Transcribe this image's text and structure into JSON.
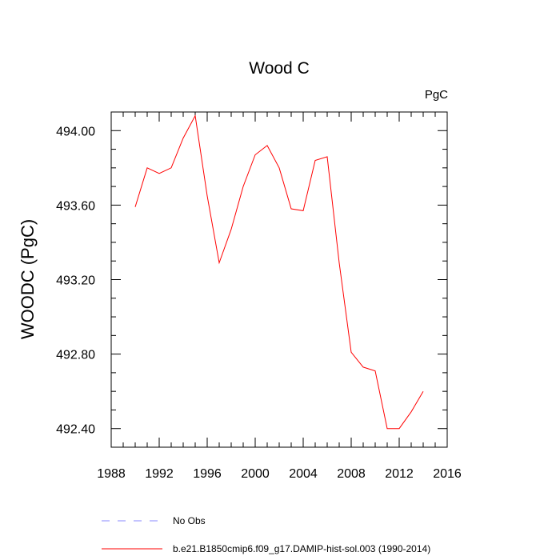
{
  "chart_data": {
    "type": "line",
    "title": "Wood C",
    "units_label": "PgC",
    "ylabel": "WOODC  (PgC)",
    "xlabel": "",
    "xlim": [
      1988,
      2016
    ],
    "ylim": [
      492.3,
      494.1
    ],
    "x_ticks": [
      1988,
      1992,
      1996,
      2000,
      2004,
      2008,
      2012,
      2016
    ],
    "x_tick_labels": [
      "1988",
      "1992",
      "1996",
      "2000",
      "2004",
      "2008",
      "2012",
      "2016"
    ],
    "y_ticks": [
      492.4,
      492.8,
      493.2,
      493.6,
      494.0
    ],
    "y_tick_labels": [
      "492.40",
      "492.80",
      "493.20",
      "493.60",
      "494.00"
    ],
    "grid": false,
    "legend_position": "bottom",
    "series": [
      {
        "name": "b.e21.B1850cmip6.f09_g17.DAMIP-hist-sol.003 (1990-2014)",
        "color": "#ff0000",
        "dash": "solid",
        "x": [
          1990,
          1991,
          1992,
          1993,
          1994,
          1995,
          1996,
          1997,
          1998,
          1999,
          2000,
          2001,
          2002,
          2003,
          2004,
          2005,
          2006,
          2007,
          2008,
          2009,
          2010,
          2011,
          2012,
          2013,
          2014
        ],
        "y": [
          493.59,
          493.8,
          493.77,
          493.8,
          493.96,
          494.08,
          493.65,
          493.29,
          493.47,
          493.7,
          493.87,
          493.92,
          493.8,
          493.58,
          493.57,
          493.84,
          493.86,
          493.29,
          492.81,
          492.73,
          492.71,
          492.4,
          492.4,
          492.49,
          492.6
        ]
      }
    ],
    "legend": [
      {
        "label": "No Obs",
        "color": "#8888ff",
        "dash": "dashed"
      },
      {
        "label": "b.e21.B1850cmip6.f09_g17.DAMIP-hist-sol.003 (1990-2014)",
        "color": "#ff0000",
        "dash": "solid"
      }
    ]
  }
}
